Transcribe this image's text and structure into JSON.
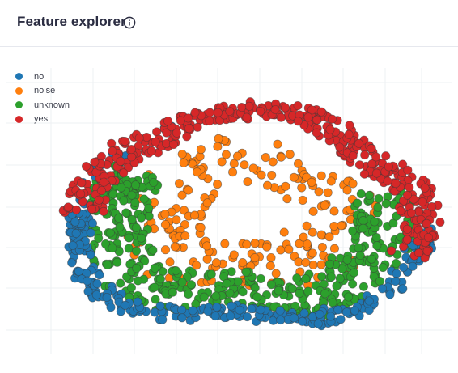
{
  "header": {
    "title": "Feature explorer",
    "info_icon": "info-circle-icon"
  },
  "legend": [
    {
      "label": "no",
      "color": "#1f77b4"
    },
    {
      "label": "noise",
      "color": "#ff7f0e"
    },
    {
      "label": "unknown",
      "color": "#2ca02c"
    },
    {
      "label": "yes",
      "color": "#d62728"
    }
  ],
  "chart_data": {
    "type": "scatter",
    "title": "",
    "xlabel": "",
    "ylabel": "",
    "grid": true,
    "legend_position": "top-left",
    "point_counts_by_series": {
      "no": 280,
      "noise": 220,
      "unknown": 430,
      "yes": 420
    },
    "series": [
      {
        "name": "no",
        "color": "#1f77b4",
        "region": "outer bottom rim of a ring-shaped cloud"
      },
      {
        "name": "noise",
        "color": "#ff7f0e",
        "region": "inner band and center of the ring"
      },
      {
        "name": "unknown",
        "color": "#2ca02c",
        "region": "lower half of the ring, between inner band and rim"
      },
      {
        "name": "yes",
        "color": "#d62728",
        "region": "top rim of the ring, extending to the right side"
      }
    ]
  }
}
